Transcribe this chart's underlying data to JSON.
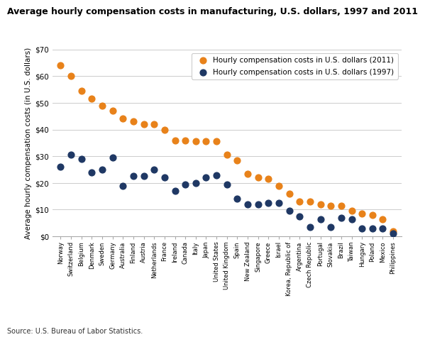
{
  "title": "Average hourly compensation costs in manufacturing, U.S. dollars, 1997 and 2011",
  "ylabel": "Average hourly compensation costs (in U.S. dollars)",
  "source": "Source: U.S. Bureau of Labor Statistics.",
  "countries": [
    "Norway",
    "Switzerland",
    "Belgium",
    "Denmark",
    "Sweden",
    "Germany",
    "Australia",
    "Finland",
    "Austria",
    "Netherlands",
    "France",
    "Ireland",
    "Canada",
    "Italy",
    "Japan",
    "United States",
    "United Kingdom",
    "Spain",
    "New Zealand",
    "Singapore",
    "Greece",
    "Israel",
    "Korea, Republic of",
    "Argentina",
    "Czech Republic",
    "Portugal",
    "Slovakia",
    "Brazil",
    "Taiwan",
    "Hungary",
    "Poland",
    "Mexico",
    "Philippines"
  ],
  "values_2011": [
    64.0,
    60.0,
    54.5,
    51.5,
    49.0,
    47.0,
    44.0,
    43.0,
    42.0,
    42.0,
    40.0,
    36.0,
    36.0,
    35.5,
    35.5,
    35.5,
    30.5,
    28.5,
    23.5,
    22.0,
    21.5,
    19.0,
    16.0,
    13.0,
    13.0,
    12.0,
    11.5,
    11.5,
    9.5,
    8.5,
    8.0,
    6.5,
    2.0
  ],
  "values_1997": [
    26.0,
    30.5,
    29.0,
    24.0,
    25.0,
    29.5,
    19.0,
    22.5,
    22.5,
    25.0,
    22.0,
    17.0,
    19.5,
    20.0,
    22.0,
    23.0,
    19.5,
    14.0,
    12.0,
    12.0,
    12.5,
    12.5,
    9.5,
    7.5,
    3.5,
    6.5,
    3.5,
    7.0,
    6.5,
    3.0,
    3.0,
    3.0,
    1.0
  ],
  "color_2011": "#E8821A",
  "color_1997": "#1F3864",
  "label_2011": "Hourly compensation costs in U.S. dollars (2011)",
  "label_1997": "Hourly compensation costs in U.S. dollars (1997)",
  "ylim": [
    0,
    70
  ],
  "yticks": [
    0,
    10,
    20,
    30,
    40,
    50,
    60,
    70
  ],
  "ytick_labels": [
    "$0",
    "$10",
    "$20",
    "$30",
    "$40",
    "$50",
    "$60",
    "$70"
  ],
  "bg_color": "#FFFFFF",
  "grid_color": "#CCCCCC",
  "title_fontsize": 9,
  "label_fontsize": 7.5,
  "tick_fontsize": 7.5,
  "legend_fontsize": 7.5,
  "xtick_fontsize": 6.0
}
